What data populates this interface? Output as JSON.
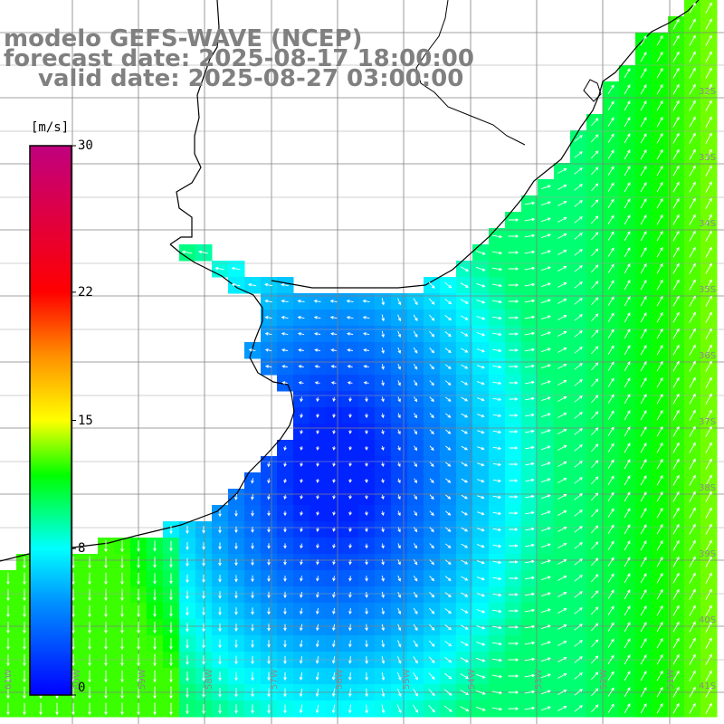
{
  "title": {
    "model": "modelo GEFS-WAVE (NCEP)",
    "forecast": "forecast date: 2025-08-17 18:00:00",
    "valid": "valid date: 2025-08-27 03:00:00"
  },
  "colorbar": {
    "unit": "[m/s]",
    "min": 0,
    "max": 30,
    "ticks": [
      "30",
      "22",
      "15",
      "8",
      "0"
    ],
    "tick_values": [
      30,
      22,
      15,
      8,
      0
    ],
    "stops": [
      {
        "v": 0,
        "c": "#0000ff"
      },
      {
        "v": 5,
        "c": "#0090ff"
      },
      {
        "v": 8,
        "c": "#00ffff"
      },
      {
        "v": 12,
        "c": "#00ff00"
      },
      {
        "v": 15,
        "c": "#ffff00"
      },
      {
        "v": 18.5,
        "c": "#ff9000"
      },
      {
        "v": 22,
        "c": "#ff0000"
      },
      {
        "v": 30,
        "c": "#c0007f"
      }
    ]
  },
  "map": {
    "lon_range": [
      -61,
      -50
    ],
    "lat_range": [
      -42,
      -31
    ],
    "land_color": "#ffffff",
    "grid_color": "#808080",
    "lon_labels": [
      "61W",
      "60W",
      "59W",
      "58W",
      "57W",
      "56W",
      "55W",
      "54W",
      "53W",
      "52W",
      "51W"
    ],
    "lat_labels": [
      "32S",
      "33S",
      "34S",
      "35S",
      "36S",
      "37S",
      "38S",
      "39S",
      "40S",
      "41S"
    ]
  }
}
